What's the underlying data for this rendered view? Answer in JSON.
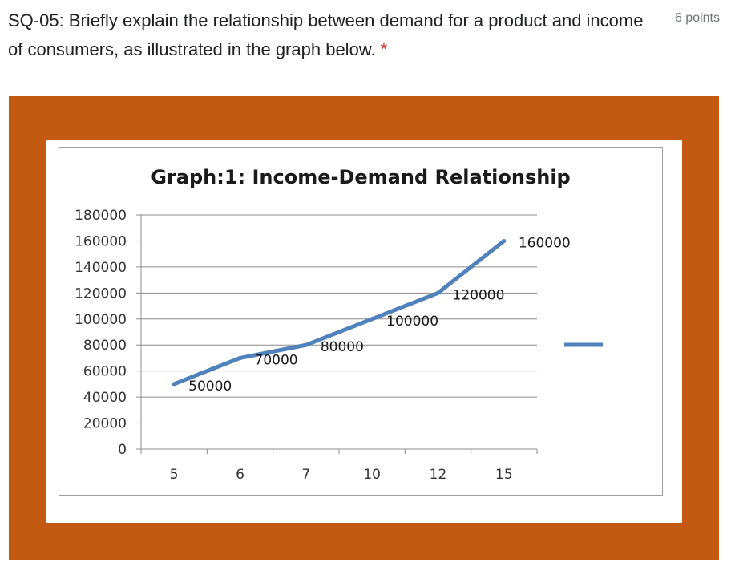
{
  "question": {
    "text": "SQ-05: Briefly explain the relationship between demand for a product and income of consumers, as illustrated in the graph below.",
    "required_marker": "*",
    "points": "6 points"
  },
  "colors": {
    "frame": "#c45911",
    "line": "#4f81bd"
  },
  "chart_data": {
    "type": "line",
    "title": "Graph:1: Income-Demand Relationship",
    "categories": [
      "5",
      "6",
      "7",
      "10",
      "12",
      "15"
    ],
    "series": [
      {
        "values": [
          50000,
          70000,
          80000,
          100000,
          120000,
          160000
        ]
      }
    ],
    "data_labels": [
      "50000",
      "70000",
      "80000",
      "100000",
      "120000",
      "160000"
    ],
    "ylim": [
      0,
      180000
    ],
    "yticks": [
      "0",
      "20000",
      "40000",
      "60000",
      "80000",
      "100000",
      "120000",
      "140000",
      "160000",
      "180000"
    ],
    "grid": true,
    "legend": "right"
  }
}
